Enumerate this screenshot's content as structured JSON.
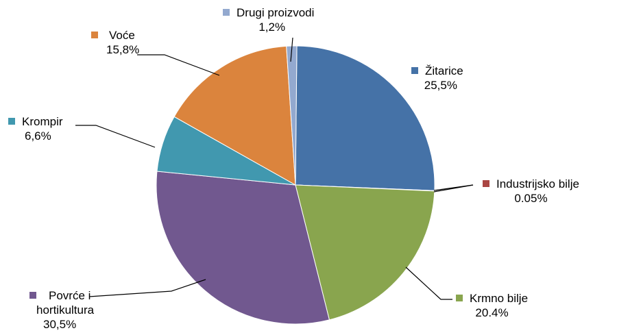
{
  "chart_data": {
    "type": "pie",
    "slices": [
      {
        "name": "Žitarice",
        "value": 25.5,
        "label": "25,5%",
        "color": "#4572A7"
      },
      {
        "name": "Industrijsko bilje",
        "value": 0.05,
        "label": "0.05%",
        "color": "#AA4643"
      },
      {
        "name": "Krmno bilje",
        "value": 20.4,
        "label": "20.4%",
        "color": "#89A54E"
      },
      {
        "name": "Povrće i hortikultura",
        "name_lines": [
          "Povrće i",
          "hortikultura"
        ],
        "value": 30.5,
        "label": "30,5%",
        "color": "#71588F"
      },
      {
        "name": "Krompir",
        "value": 6.6,
        "label": "6,6%",
        "color": "#4198AF"
      },
      {
        "name": "Voće",
        "value": 15.8,
        "label": "15,8%",
        "color": "#DB843D"
      },
      {
        "name": "Drugi proizvodi",
        "value": 1.2,
        "label": "1,2%",
        "color": "#93A9CF"
      }
    ]
  }
}
